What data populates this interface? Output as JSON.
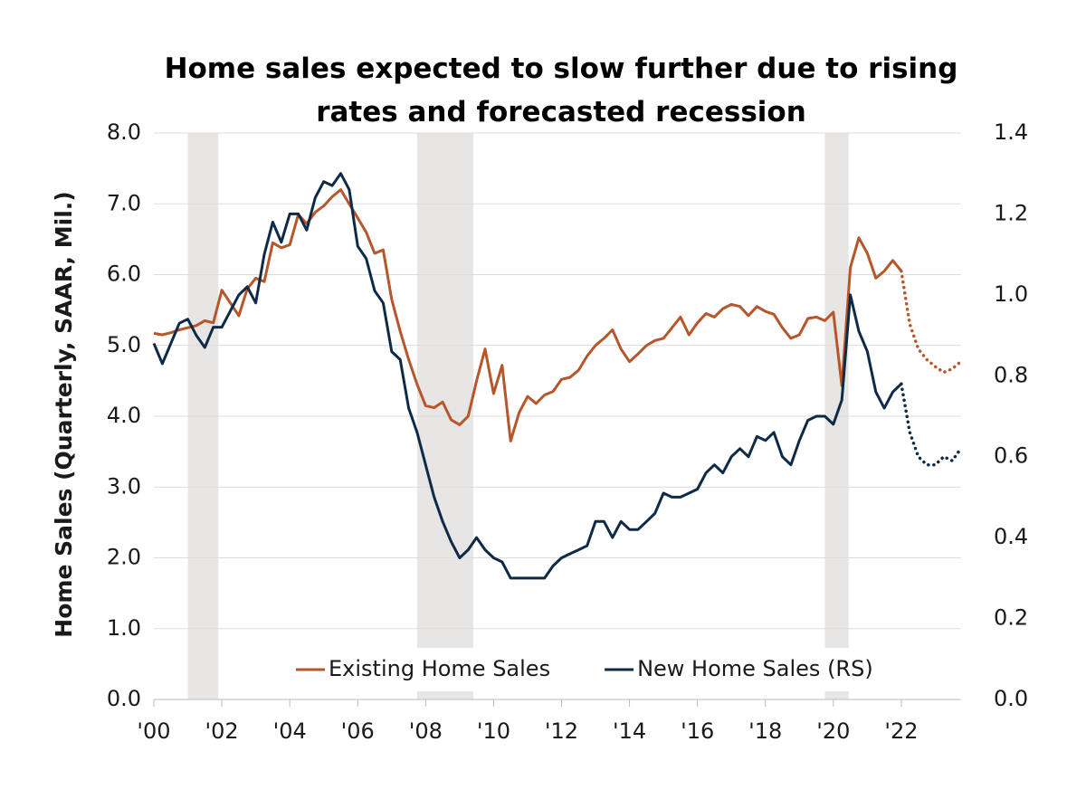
{
  "chart_data": {
    "type": "line",
    "title": "Home sales expected to slow further due to rising rates and forecasted recession",
    "y_label": "Home Sales (Quarterly, SAAR, Mil.)",
    "x": [
      2000,
      2000.25,
      2000.5,
      2000.75,
      2001,
      2001.25,
      2001.5,
      2001.75,
      2002,
      2002.25,
      2002.5,
      2002.75,
      2003,
      2003.25,
      2003.5,
      2003.75,
      2004,
      2004.25,
      2004.5,
      2004.75,
      2005,
      2005.25,
      2005.5,
      2005.75,
      2006,
      2006.25,
      2006.5,
      2006.75,
      2007,
      2007.25,
      2007.5,
      2007.75,
      2008,
      2008.25,
      2008.5,
      2008.75,
      2009,
      2009.25,
      2009.5,
      2009.75,
      2010,
      2010.25,
      2010.5,
      2010.75,
      2011,
      2011.25,
      2011.5,
      2011.75,
      2012,
      2012.25,
      2012.5,
      2012.75,
      2013,
      2013.25,
      2013.5,
      2013.75,
      2014,
      2014.25,
      2014.5,
      2014.75,
      2015,
      2015.25,
      2015.5,
      2015.75,
      2016,
      2016.25,
      2016.5,
      2016.75,
      2017,
      2017.25,
      2017.5,
      2017.75,
      2018,
      2018.25,
      2018.5,
      2018.75,
      2019,
      2019.25,
      2019.5,
      2019.75,
      2020,
      2020.25,
      2020.5,
      2020.75,
      2021,
      2021.25,
      2021.5,
      2021.75,
      2022,
      2022.25,
      2022.5,
      2022.75,
      2023,
      2023.25,
      2023.5,
      2023.75
    ],
    "series": [
      {
        "name": "Existing Home Sales",
        "color": "#b5562b",
        "axis": "y",
        "values": [
          5.17,
          5.15,
          5.18,
          5.22,
          5.25,
          5.28,
          5.35,
          5.32,
          5.78,
          5.6,
          5.42,
          5.8,
          5.95,
          5.9,
          6.45,
          6.38,
          6.42,
          6.85,
          6.72,
          6.88,
          6.97,
          7.1,
          7.2,
          7.0,
          6.8,
          6.6,
          6.3,
          6.35,
          5.65,
          5.2,
          4.8,
          4.45,
          4.15,
          4.12,
          4.2,
          3.95,
          3.88,
          4.0,
          4.5,
          4.95,
          4.32,
          4.72,
          3.65,
          4.05,
          4.28,
          4.18,
          4.3,
          4.35,
          4.52,
          4.55,
          4.65,
          4.85,
          5.0,
          5.1,
          5.22,
          4.95,
          4.77,
          4.88,
          5.0,
          5.07,
          5.1,
          5.25,
          5.4,
          5.15,
          5.32,
          5.45,
          5.4,
          5.52,
          5.58,
          5.55,
          5.42,
          5.55,
          5.48,
          5.44,
          5.25,
          5.1,
          5.15,
          5.38,
          5.4,
          5.35,
          5.47,
          4.43,
          6.1,
          6.52,
          6.3,
          5.95,
          6.05,
          6.2,
          6.05,
          5.3,
          4.95,
          4.8,
          4.7,
          4.62,
          4.67,
          4.77
        ]
      },
      {
        "name": "New Home Sales (RS)",
        "color": "#0e2a47",
        "axis": "y2",
        "values": [
          0.88,
          0.83,
          0.88,
          0.93,
          0.94,
          0.9,
          0.87,
          0.92,
          0.92,
          0.96,
          1.0,
          1.02,
          0.98,
          1.1,
          1.18,
          1.13,
          1.2,
          1.2,
          1.16,
          1.24,
          1.28,
          1.27,
          1.3,
          1.26,
          1.12,
          1.09,
          1.01,
          0.98,
          0.86,
          0.84,
          0.72,
          0.66,
          0.58,
          0.5,
          0.44,
          0.39,
          0.35,
          0.37,
          0.4,
          0.37,
          0.35,
          0.34,
          0.3,
          0.3,
          0.3,
          0.3,
          0.3,
          0.33,
          0.35,
          0.36,
          0.37,
          0.38,
          0.44,
          0.44,
          0.4,
          0.44,
          0.42,
          0.42,
          0.44,
          0.46,
          0.51,
          0.5,
          0.5,
          0.51,
          0.52,
          0.56,
          0.58,
          0.56,
          0.6,
          0.62,
          0.6,
          0.65,
          0.64,
          0.66,
          0.6,
          0.58,
          0.64,
          0.69,
          0.7,
          0.7,
          0.68,
          0.74,
          1.0,
          0.91,
          0.86,
          0.76,
          0.72,
          0.76,
          0.78,
          0.66,
          0.6,
          0.58,
          0.58,
          0.6,
          0.59,
          0.62
        ]
      }
    ],
    "forecast_from": 2022,
    "recessions": [
      [
        2001.0,
        2001.9
      ],
      [
        2007.75,
        2009.4
      ],
      [
        2019.75,
        2020.45
      ]
    ],
    "xlim": [
      2000,
      2024
    ],
    "xticks": [
      {
        "value": 2000,
        "label": "'00"
      },
      {
        "value": 2002,
        "label": "'02"
      },
      {
        "value": 2004,
        "label": "'04"
      },
      {
        "value": 2006,
        "label": "'06"
      },
      {
        "value": 2008,
        "label": "'08"
      },
      {
        "value": 2010,
        "label": "'10"
      },
      {
        "value": 2012,
        "label": "'12"
      },
      {
        "value": 2014,
        "label": "'14"
      },
      {
        "value": 2016,
        "label": "'16"
      },
      {
        "value": 2018,
        "label": "'18"
      },
      {
        "value": 2020,
        "label": "'20"
      },
      {
        "value": 2022,
        "label": "'22"
      }
    ],
    "ylim": [
      0,
      8
    ],
    "yticks": [
      {
        "value": 0,
        "label": "0.0"
      },
      {
        "value": 1,
        "label": "1.0"
      },
      {
        "value": 2,
        "label": "2.0"
      },
      {
        "value": 3,
        "label": "3.0"
      },
      {
        "value": 4,
        "label": "4.0"
      },
      {
        "value": 5,
        "label": "5.0"
      },
      {
        "value": 6,
        "label": "6.0"
      },
      {
        "value": 7,
        "label": "7.0"
      },
      {
        "value": 8,
        "label": "8.0"
      }
    ],
    "y2lim": [
      0,
      1.4
    ],
    "y2ticks": [
      {
        "value": 0,
        "label": "0.0"
      },
      0.2,
      0.4,
      0.6,
      0.8,
      {
        "value": 1,
        "label": "1.0"
      },
      1.2,
      1.4
    ],
    "grid": true,
    "legend": "lower center"
  }
}
